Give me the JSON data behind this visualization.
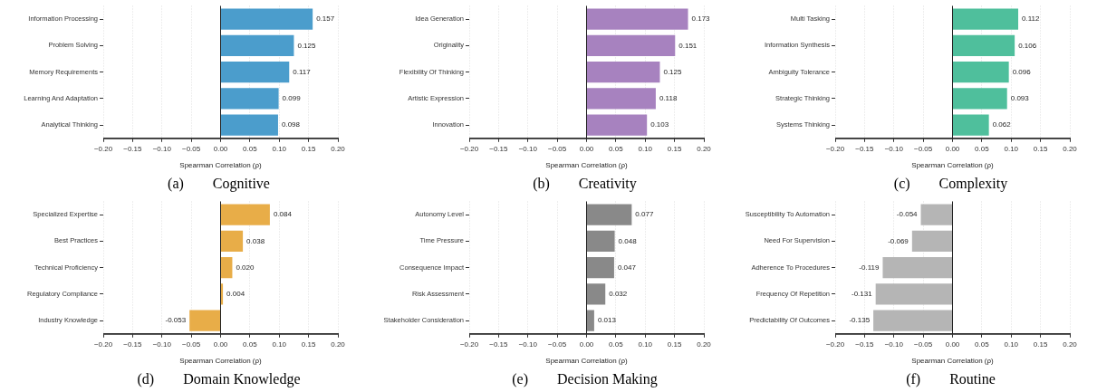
{
  "chart_data": [
    {
      "type": "bar",
      "orientation": "horizontal",
      "title": "(a) Cognitive",
      "xlabel": "Spearman Correlation (ρ)",
      "categories": [
        "Information Processing",
        "Problem Solving",
        "Memory Requirements",
        "Learning And Adaptation",
        "Analytical Thinking"
      ],
      "values": [
        0.157,
        0.125,
        0.117,
        0.099,
        0.098
      ],
      "color": "#4b9dcc",
      "data_labels": true,
      "xlim": [
        -0.2,
        0.2
      ],
      "xticks": [
        {
          "value": -0.2,
          "label": "−0.20"
        },
        {
          "value": -0.15,
          "label": "−0.15"
        },
        {
          "value": -0.1,
          "label": "−0.10"
        },
        {
          "value": -0.05,
          "label": "−0.05"
        },
        {
          "value": 0,
          "label": "0.00"
        },
        {
          "value": 0.05,
          "label": "0.05"
        },
        {
          "value": 0.1,
          "label": "0.10"
        },
        {
          "value": 0.15,
          "label": "0.15"
        },
        {
          "value": 0.2,
          "label": "0.20"
        }
      ],
      "grid": "x",
      "ref_lines": [
        {
          "axis": "x",
          "value": 0,
          "color": "#222222"
        }
      ]
    },
    {
      "type": "bar",
      "orientation": "horizontal",
      "title": "(b) Creativity",
      "xlabel": "Spearman Correlation (ρ)",
      "categories": [
        "Idea Generation",
        "Originality",
        "Flexibility Of Thinking",
        "Artistic Expression",
        "Innovation"
      ],
      "values": [
        0.173,
        0.151,
        0.125,
        0.118,
        0.103
      ],
      "color": "#a782bf",
      "data_labels": true,
      "xlim": [
        -0.2,
        0.2
      ],
      "xticks": [
        {
          "value": -0.2,
          "label": "−0.20"
        },
        {
          "value": -0.15,
          "label": "−0.15"
        },
        {
          "value": -0.1,
          "label": "−0.10"
        },
        {
          "value": -0.05,
          "label": "−0.05"
        },
        {
          "value": 0,
          "label": "0.00"
        },
        {
          "value": 0.05,
          "label": "0.05"
        },
        {
          "value": 0.1,
          "label": "0.10"
        },
        {
          "value": 0.15,
          "label": "0.15"
        },
        {
          "value": 0.2,
          "label": "0.20"
        }
      ],
      "grid": "x",
      "ref_lines": [
        {
          "axis": "x",
          "value": 0,
          "color": "#222222"
        }
      ]
    },
    {
      "type": "bar",
      "orientation": "horizontal",
      "title": "(c) Complexity",
      "xlabel": "Spearman Correlation (ρ)",
      "categories": [
        "Multi Tasking",
        "Information Synthesis",
        "Ambiguity Tolerance",
        "Strategic Thinking",
        "Systems Thinking"
      ],
      "values": [
        0.112,
        0.106,
        0.096,
        0.093,
        0.062
      ],
      "color": "#4fbf9c",
      "data_labels": true,
      "xlim": [
        -0.2,
        0.2
      ],
      "xticks": [
        {
          "value": -0.2,
          "label": "−0.20"
        },
        {
          "value": -0.15,
          "label": "−0.15"
        },
        {
          "value": -0.1,
          "label": "−0.10"
        },
        {
          "value": -0.05,
          "label": "−0.05"
        },
        {
          "value": 0,
          "label": "0.00"
        },
        {
          "value": 0.05,
          "label": "0.05"
        },
        {
          "value": 0.1,
          "label": "0.10"
        },
        {
          "value": 0.15,
          "label": "0.15"
        },
        {
          "value": 0.2,
          "label": "0.20"
        }
      ],
      "grid": "x",
      "ref_lines": [
        {
          "axis": "x",
          "value": 0,
          "color": "#222222"
        }
      ]
    },
    {
      "type": "bar",
      "orientation": "horizontal",
      "title": "(d) Domain Knowledge",
      "xlabel": "Spearman Correlation (ρ)",
      "categories": [
        "Specialized Expertise",
        "Best Practices",
        "Technical Proficiency",
        "Regulatory Compliance",
        "Industry Knowledge"
      ],
      "values": [
        0.084,
        0.038,
        0.02,
        0.004,
        -0.053
      ],
      "value_labels": [
        "0.084",
        "0.038",
        "0.020",
        "0.004",
        "-0.053"
      ],
      "color": "#e8ad48",
      "xlim": [
        -0.2,
        0.2
      ],
      "xticks": [
        {
          "value": -0.2,
          "label": "−0.20"
        },
        {
          "value": -0.15,
          "label": "−0.15"
        },
        {
          "value": -0.1,
          "label": "−0.10"
        },
        {
          "value": -0.05,
          "label": "−0.05"
        },
        {
          "value": 0,
          "label": "0.00"
        },
        {
          "value": 0.05,
          "label": "0.05"
        },
        {
          "value": 0.1,
          "label": "0.10"
        },
        {
          "value": 0.15,
          "label": "0.15"
        },
        {
          "value": 0.2,
          "label": "0.20"
        }
      ],
      "grid": "x",
      "ref_lines": [
        {
          "axis": "x",
          "value": 0,
          "color": "#222222"
        }
      ]
    },
    {
      "type": "bar",
      "orientation": "horizontal",
      "title": "(e) Decision Making",
      "xlabel": "Spearman Correlation (ρ)",
      "categories": [
        "Autonomy Level",
        "Time Pressure",
        "Consequence Impact",
        "Risk Assessment",
        "Stakeholder Consideration"
      ],
      "values": [
        0.077,
        0.048,
        0.047,
        0.032,
        0.013
      ],
      "value_labels": [
        "0.077",
        "0.048",
        "0.047",
        "0.032",
        "0.013"
      ],
      "color": "#898989",
      "xlim": [
        -0.2,
        0.2
      ],
      "xticks": [
        {
          "value": -0.2,
          "label": "−0.20"
        },
        {
          "value": -0.15,
          "label": "−0.15"
        },
        {
          "value": -0.1,
          "label": "−0.10"
        },
        {
          "value": -0.05,
          "label": "−0.05"
        },
        {
          "value": 0,
          "label": "0.00"
        },
        {
          "value": 0.05,
          "label": "0.05"
        },
        {
          "value": 0.1,
          "label": "0.10"
        },
        {
          "value": 0.15,
          "label": "0.15"
        },
        {
          "value": 0.2,
          "label": "0.20"
        }
      ],
      "grid": "x",
      "ref_lines": [
        {
          "axis": "x",
          "value": 0,
          "color": "#222222"
        }
      ]
    },
    {
      "type": "bar",
      "orientation": "horizontal",
      "title": "(f) Routine",
      "xlabel": "Spearman Correlation (ρ)",
      "categories": [
        "Susceptibility To Automation",
        "Need For Supervision",
        "Adherence To Procedures",
        "Frequency Of Repetition",
        "Predictability Of Outcomes"
      ],
      "values": [
        -0.054,
        -0.069,
        -0.119,
        -0.131,
        -0.135
      ],
      "value_labels": [
        "-0.054",
        "-0.069",
        "-0.119",
        "-0.131",
        "-0.135"
      ],
      "color": "#b5b5b5",
      "xlim": [
        -0.2,
        0.2
      ],
      "xticks": [
        {
          "value": -0.2,
          "label": "−0.20"
        },
        {
          "value": -0.15,
          "label": "−0.15"
        },
        {
          "value": -0.1,
          "label": "−0.10"
        },
        {
          "value": -0.05,
          "label": "−0.05"
        },
        {
          "value": 0,
          "label": "0.00"
        },
        {
          "value": 0.05,
          "label": "0.05"
        },
        {
          "value": 0.1,
          "label": "0.10"
        },
        {
          "value": 0.15,
          "label": "0.15"
        },
        {
          "value": 0.2,
          "label": "0.20"
        }
      ],
      "grid": "x",
      "ref_lines": [
        {
          "axis": "x",
          "value": 0,
          "color": "#222222"
        }
      ]
    }
  ]
}
